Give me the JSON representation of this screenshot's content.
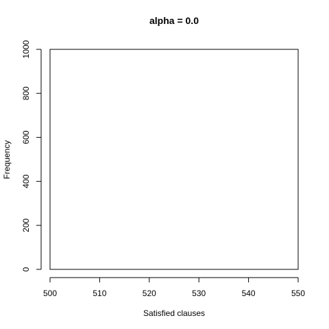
{
  "chart_data": {
    "type": "bar",
    "title": "alpha = 0.0",
    "xlabel": "Satisfied clauses",
    "ylabel": "Frequency",
    "xlim": [
      500,
      550
    ],
    "ylim": [
      0,
      1000
    ],
    "x_ticks": [
      500,
      510,
      520,
      530,
      540,
      550
    ],
    "y_ticks": [
      0,
      200,
      400,
      600,
      800,
      1000
    ],
    "x_tick_labels": [
      "500",
      "510",
      "520",
      "530",
      "540",
      "550"
    ],
    "y_tick_labels": [
      "0",
      "200",
      "400",
      "600",
      "800",
      "1000"
    ],
    "series": [
      {
        "values": []
      }
    ],
    "grid": false,
    "legend": "none",
    "colors": {
      "axis": "#000000",
      "plot_border": "#000000",
      "background": "#ffffff"
    }
  }
}
